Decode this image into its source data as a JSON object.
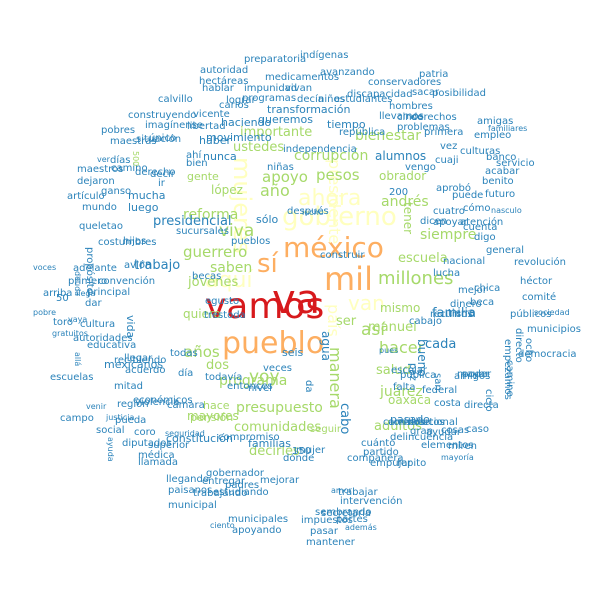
{
  "palette": {
    "red": "#d7191c",
    "orange": "#fdae61",
    "yellow": "#ffffbf",
    "green": "#a6d96a",
    "blue": "#2b83ba"
  },
  "words": [
    {
      "t": "va",
      "c": "red"
    },
    {
      "t": "vamos",
      "c": "red"
    },
    {
      "t": "mil",
      "c": "orange"
    },
    {
      "t": "méxico",
      "c": "orange"
    },
    {
      "t": "sí",
      "c": "orange"
    },
    {
      "t": "pueblo",
      "c": "orange"
    },
    {
      "t": "gobierno",
      "c": "yellow"
    },
    {
      "t": "aquí",
      "c": "yellow"
    },
    {
      "t": "mujeres",
      "c": "yellow"
    },
    {
      "t": "ahora",
      "c": "yellow"
    },
    {
      "t": "van",
      "c": "yellow"
    },
    {
      "t": "presidente",
      "c": "yellow"
    },
    {
      "t": "país",
      "c": "yellow"
    },
    {
      "t": "millones",
      "c": "green"
    },
    {
      "t": "pesos",
      "c": "green"
    },
    {
      "t": "apoyo",
      "c": "green"
    },
    {
      "t": "viva",
      "c": "green"
    },
    {
      "t": "voy",
      "c": "green"
    },
    {
      "t": "así",
      "c": "green"
    },
    {
      "t": "hacer",
      "c": "green"
    },
    {
      "t": "programa",
      "c": "green"
    },
    {
      "t": "presupuesto",
      "c": "green"
    },
    {
      "t": "comunidades",
      "c": "green"
    },
    {
      "t": "año",
      "c": "green"
    },
    {
      "t": "guerrero",
      "c": "green"
    },
    {
      "t": "reforma",
      "c": "green"
    },
    {
      "t": "corrupción",
      "c": "green"
    },
    {
      "t": "bienestar",
      "c": "green"
    },
    {
      "t": "tener",
      "c": "green"
    },
    {
      "t": "andrés",
      "c": "green"
    },
    {
      "t": "escuela",
      "c": "green"
    },
    {
      "t": "siempre",
      "c": "green"
    },
    {
      "t": "saben",
      "c": "green"
    },
    {
      "t": "jóvenes",
      "c": "green"
    },
    {
      "t": "años",
      "c": "green"
    },
    {
      "t": "juárez",
      "c": "green"
    },
    {
      "t": "salud",
      "c": "green"
    },
    {
      "t": "oaxaca",
      "c": "green"
    },
    {
      "t": "adultos",
      "c": "green"
    },
    {
      "t": "manuel",
      "c": "green"
    },
    {
      "t": "dos",
      "c": "green"
    },
    {
      "t": "mayores",
      "c": "green"
    },
    {
      "t": "decirles",
      "c": "green"
    },
    {
      "t": "quiero",
      "c": "green"
    },
    {
      "t": "manera",
      "c": "green"
    },
    {
      "t": "mismo",
      "c": "green"
    },
    {
      "t": "sólo",
      "c": "blue"
    },
    {
      "t": "ustedes",
      "c": "green"
    },
    {
      "t": "importante",
      "c": "green"
    },
    {
      "t": "gente",
      "c": "green"
    },
    {
      "t": "lópez",
      "c": "green"
    },
    {
      "t": "presidencial",
      "c": "blue"
    },
    {
      "t": "bueno",
      "c": "blue"
    },
    {
      "t": "trabajo",
      "c": "blue"
    },
    {
      "t": "familia",
      "c": "blue"
    },
    {
      "t": "nunca",
      "c": "blue"
    },
    {
      "t": "haber",
      "c": "blue"
    },
    {
      "t": "alumnos",
      "c": "blue"
    },
    {
      "t": "obrador",
      "c": "green"
    },
    {
      "t": "mexicanos",
      "c": "blue"
    },
    {
      "t": "ser",
      "c": "green"
    },
    {
      "t": "cada",
      "c": "blue"
    },
    {
      "t": "hace",
      "c": "green"
    },
    {
      "t": "pensión",
      "c": "green"
    },
    {
      "t": "constitución",
      "c": "blue"
    },
    {
      "t": "familias",
      "c": "blue"
    },
    {
      "t": "150",
      "c": "blue"
    },
    {
      "t": "mujer",
      "c": "blue"
    },
    {
      "t": "gobernador",
      "c": "blue"
    },
    {
      "t": "entregar",
      "c": "blue"
    },
    {
      "t": "padres",
      "c": "blue"
    },
    {
      "t": "trabajando",
      "c": "blue"
    },
    {
      "t": "estudiando",
      "c": "blue"
    },
    {
      "t": "trabajar",
      "c": "blue"
    },
    {
      "t": "pasado",
      "c": "blue"
    },
    {
      "t": "amigos",
      "c": "blue"
    },
    {
      "t": "federal",
      "c": "blue"
    },
    {
      "t": "mayor",
      "c": "blue"
    },
    {
      "t": "poder",
      "c": "blue"
    },
    {
      "t": "directa",
      "c": "blue"
    },
    {
      "t": "dinero",
      "c": "blue"
    },
    {
      "t": "lucha",
      "c": "blue"
    },
    {
      "t": "nacional",
      "c": "blue"
    },
    {
      "t": "mejor",
      "c": "blue"
    },
    {
      "t": "recursos",
      "c": "blue"
    },
    {
      "t": "puede",
      "c": "blue"
    },
    {
      "t": "dicen",
      "c": "blue"
    },
    {
      "t": "apoyar",
      "c": "blue"
    },
    {
      "t": "cuenta",
      "c": "blue"
    },
    {
      "t": "digo",
      "c": "blue"
    },
    {
      "t": "cómo",
      "c": "blue"
    },
    {
      "t": "revolución",
      "c": "blue"
    },
    {
      "t": "héctor",
      "c": "blue"
    },
    {
      "t": "comité",
      "c": "blue"
    },
    {
      "t": "públicos",
      "c": "blue"
    },
    {
      "t": "empezamos",
      "c": "blue"
    },
    {
      "t": "democracia",
      "c": "blue"
    },
    {
      "t": "movimiento",
      "c": "blue"
    },
    {
      "t": "haciendo",
      "c": "blue"
    },
    {
      "t": "queremos",
      "c": "blue"
    },
    {
      "t": "transformación",
      "c": "blue"
    },
    {
      "t": "tiempo",
      "c": "blue"
    },
    {
      "t": "programas",
      "c": "blue"
    },
    {
      "t": "estudiantes",
      "c": "blue"
    },
    {
      "t": "discapacidad",
      "c": "blue"
    },
    {
      "t": "sacar",
      "c": "blue"
    },
    {
      "t": "conservadores",
      "c": "blue"
    },
    {
      "t": "avanzando",
      "c": "blue"
    },
    {
      "t": "indígenas",
      "c": "blue"
    },
    {
      "t": "preparatoria",
      "c": "blue"
    },
    {
      "t": "autoridad",
      "c": "blue"
    },
    {
      "t": "hectáreas",
      "c": "blue"
    },
    {
      "t": "medicamentos",
      "c": "blue"
    },
    {
      "t": "impunidad",
      "c": "blue"
    },
    {
      "t": "vivan",
      "c": "blue"
    },
    {
      "t": "hablar",
      "c": "blue"
    },
    {
      "t": "lograr",
      "c": "blue"
    },
    {
      "t": "carlos",
      "c": "blue"
    },
    {
      "t": "calvillo",
      "c": "blue"
    },
    {
      "t": "construyendo",
      "c": "blue"
    },
    {
      "t": "vicente",
      "c": "blue"
    },
    {
      "t": "imagínense",
      "c": "blue"
    },
    {
      "t": "libertad",
      "c": "blue"
    },
    {
      "t": "pobres",
      "c": "blue"
    },
    {
      "t": "situación",
      "c": "blue"
    },
    {
      "t": "único",
      "c": "blue"
    },
    {
      "t": "días",
      "c": "blue"
    },
    {
      "t": "camino",
      "c": "blue"
    },
    {
      "t": "maestras",
      "c": "blue"
    },
    {
      "t": "maestros",
      "c": "blue"
    },
    {
      "t": "dejaron",
      "c": "blue"
    },
    {
      "t": "artículo",
      "c": "blue"
    },
    {
      "t": "mundo",
      "c": "blue"
    },
    {
      "t": "deuda",
      "c": "blue"
    },
    {
      "t": "propósito",
      "c": "blue"
    },
    {
      "t": "costumbres",
      "c": "blue"
    },
    {
      "t": "adelante",
      "c": "blue"
    },
    {
      "t": "voces",
      "c": "blue"
    },
    {
      "t": "primero",
      "c": "blue"
    },
    {
      "t": "convención",
      "c": "blue"
    },
    {
      "t": "arriba",
      "c": "blue"
    },
    {
      "t": "llega",
      "c": "blue"
    },
    {
      "t": "principal",
      "c": "blue"
    },
    {
      "t": "pobre",
      "c": "blue"
    },
    {
      "t": "toro",
      "c": "blue"
    },
    {
      "t": "gratuitos",
      "c": "blue"
    },
    {
      "t": "cultura",
      "c": "blue"
    },
    {
      "t": "educativa",
      "c": "blue"
    },
    {
      "t": "recibiendo",
      "c": "blue"
    },
    {
      "t": "acuerdo",
      "c": "blue"
    },
    {
      "t": "llegar",
      "c": "blue"
    },
    {
      "t": "escuelas",
      "c": "blue"
    },
    {
      "t": "mitad",
      "c": "blue"
    },
    {
      "t": "región",
      "c": "blue"
    },
    {
      "t": "económicos",
      "c": "blue"
    },
    {
      "t": "cámara",
      "c": "blue"
    },
    {
      "t": "campo",
      "c": "blue"
    },
    {
      "t": "pueda",
      "c": "blue"
    },
    {
      "t": "social",
      "c": "blue"
    },
    {
      "t": "coro",
      "c": "blue"
    },
    {
      "t": "seguridad",
      "c": "blue"
    },
    {
      "t": "diputados",
      "c": "blue"
    },
    {
      "t": "superior",
      "c": "blue"
    },
    {
      "t": "médica",
      "c": "blue"
    },
    {
      "t": "llamada",
      "c": "blue"
    },
    {
      "t": "llegando",
      "c": "blue"
    },
    {
      "t": "paisanos",
      "c": "blue"
    },
    {
      "t": "municipal",
      "c": "blue"
    },
    {
      "t": "mejorar",
      "c": "blue"
    },
    {
      "t": "ciento",
      "c": "blue"
    },
    {
      "t": "municipales",
      "c": "blue"
    },
    {
      "t": "apoyando",
      "c": "blue"
    },
    {
      "t": "impuestos",
      "c": "blue"
    },
    {
      "t": "pasar",
      "c": "blue"
    },
    {
      "t": "mantener",
      "c": "blue"
    },
    {
      "t": "partes",
      "c": "blue"
    },
    {
      "t": "además",
      "c": "blue"
    },
    {
      "t": "secretaria",
      "c": "blue"
    },
    {
      "t": "sembrando",
      "c": "blue"
    },
    {
      "t": "intervención",
      "c": "blue"
    },
    {
      "t": "empujar",
      "c": "blue"
    },
    {
      "t": "repito",
      "c": "blue"
    },
    {
      "t": "compañera",
      "c": "blue"
    },
    {
      "t": "dónde",
      "c": "blue"
    },
    {
      "t": "cuánto",
      "c": "blue"
    },
    {
      "t": "delincuencia",
      "c": "blue"
    },
    {
      "t": "pública",
      "c": "blue"
    },
    {
      "t": "tierra",
      "c": "blue"
    },
    {
      "t": "beca",
      "c": "blue"
    },
    {
      "t": "partido",
      "c": "blue"
    },
    {
      "t": "constitucional",
      "c": "blue"
    },
    {
      "t": "boletos",
      "c": "blue"
    },
    {
      "t": "gran",
      "c": "blue"
    },
    {
      "t": "ayudar",
      "c": "blue"
    },
    {
      "t": "costa",
      "c": "blue"
    },
    {
      "t": "caso",
      "c": "blue"
    },
    {
      "t": "cosas",
      "c": "blue"
    },
    {
      "t": "miren",
      "c": "blue"
    },
    {
      "t": "elementos",
      "c": "blue"
    },
    {
      "t": "mayoría",
      "c": "blue"
    },
    {
      "t": "municipios",
      "c": "blue"
    },
    {
      "t": "ocho",
      "c": "blue"
    },
    {
      "t": "directo",
      "c": "blue"
    },
    {
      "t": "camine",
      "c": "blue"
    },
    {
      "t": "sociedad",
      "c": "blue"
    },
    {
      "t": "chica",
      "c": "blue"
    },
    {
      "t": "general",
      "c": "blue"
    },
    {
      "t": "atención",
      "c": "blue"
    },
    {
      "t": "nasculo",
      "c": "blue"
    },
    {
      "t": "cuatro",
      "c": "blue"
    },
    {
      "t": "aprobó",
      "c": "blue"
    },
    {
      "t": "benito",
      "c": "blue"
    },
    {
      "t": "futuro",
      "c": "blue"
    },
    {
      "t": "acabar",
      "c": "blue"
    },
    {
      "t": "banco",
      "c": "blue"
    },
    {
      "t": "empleo",
      "c": "blue"
    },
    {
      "t": "servicio",
      "c": "blue"
    },
    {
      "t": "vez",
      "c": "blue"
    },
    {
      "t": "culturas",
      "c": "blue"
    },
    {
      "t": "amigas",
      "c": "blue"
    },
    {
      "t": "familiares",
      "c": "blue"
    },
    {
      "t": "primera",
      "c": "blue"
    },
    {
      "t": "problemas",
      "c": "blue"
    },
    {
      "t": "derechos",
      "c": "blue"
    },
    {
      "t": "patria",
      "c": "blue"
    },
    {
      "t": "posibilidad",
      "c": "blue"
    },
    {
      "t": "hombres",
      "c": "blue"
    },
    {
      "t": "cinco",
      "c": "blue"
    },
    {
      "t": "llevamos",
      "c": "blue"
    },
    {
      "t": "república",
      "c": "blue"
    },
    {
      "t": "independencia",
      "c": "blue"
    },
    {
      "t": "decía",
      "c": "blue"
    },
    {
      "t": "niños",
      "c": "blue"
    },
    {
      "t": "construir",
      "c": "blue"
    },
    {
      "t": "niñas",
      "c": "blue"
    },
    {
      "t": "vengo",
      "c": "blue"
    },
    {
      "t": "cuaji",
      "c": "blue"
    },
    {
      "t": "200",
      "c": "blue"
    },
    {
      "t": "mucha",
      "c": "blue"
    },
    {
      "t": "luego",
      "c": "blue"
    },
    {
      "t": "sucursales",
      "c": "blue"
    },
    {
      "t": "hijos",
      "c": "blue"
    },
    {
      "t": "avión",
      "c": "blue"
    },
    {
      "t": "becas",
      "c": "blue"
    },
    {
      "t": "egusto",
      "c": "blue"
    },
    {
      "t": "trestoda",
      "c": "blue"
    },
    {
      "t": "pueblos",
      "c": "blue"
    },
    {
      "t": "todavía",
      "c": "blue"
    },
    {
      "t": "violencia",
      "c": "blue"
    },
    {
      "t": "entonces",
      "c": "blue"
    },
    {
      "t": "nivel",
      "c": "blue"
    },
    {
      "t": "veces",
      "c": "blue"
    },
    {
      "t": "bien",
      "c": "blue"
    },
    {
      "t": "ahí",
      "c": "blue"
    },
    {
      "t": "decir",
      "c": "blue"
    },
    {
      "t": "ir",
      "c": "blue"
    },
    {
      "t": "ver",
      "c": "blue"
    },
    {
      "t": "vida",
      "c": "blue"
    },
    {
      "t": "agua",
      "c": "blue"
    },
    {
      "t": "seis",
      "c": "blue"
    },
    {
      "t": "día",
      "c": "blue"
    },
    {
      "t": "todas",
      "c": "blue"
    },
    {
      "t": "compromiso",
      "c": "blue"
    },
    {
      "t": "seguir",
      "c": "green"
    },
    {
      "t": "da",
      "c": "blue"
    },
    {
      "t": "cabo",
      "c": "blue"
    },
    {
      "t": "paz",
      "c": "blue"
    },
    {
      "t": "san",
      "c": "blue"
    },
    {
      "t": "escolar",
      "c": "blue"
    },
    {
      "t": "falta",
      "c": "blue"
    },
    {
      "t": "500",
      "c": "green"
    },
    {
      "t": "derecho",
      "c": "blue"
    },
    {
      "t": "queletao",
      "c": "blue"
    },
    {
      "t": "50",
      "c": "blue"
    },
    {
      "t": "dar",
      "c": "blue"
    },
    {
      "t": "allá",
      "c": "blue"
    },
    {
      "t": "autoridades",
      "c": "blue"
    },
    {
      "t": "vaya",
      "c": "blue"
    },
    {
      "t": "venir",
      "c": "blue"
    },
    {
      "t": "ayuda",
      "c": "blue"
    },
    {
      "t": "justicia",
      "c": "blue"
    },
    {
      "t": "ciclo",
      "c": "blue"
    },
    {
      "t": "cabajo",
      "c": "blue"
    },
    {
      "t": "caminos",
      "c": "blue"
    },
    {
      "t": "ganso",
      "c": "blue"
    },
    {
      "t": "después",
      "c": "blue"
    },
    {
      "t": "lucho",
      "c": "blue"
    },
    {
      "t": "pues",
      "c": "blue"
    },
    {
      "t": "amor",
      "c": "blue"
    },
    {
      "t": "caso",
      "c": "blue"
    },
    {
      "t": "700",
      "c": "blue"
    },
    {
      "t": "20",
      "c": "blue"
    },
    {
      "t": "%",
      "c": "blue"
    },
    {
      "t": "hacer",
      "c": "blue"
    },
    {
      "t": "mucha",
      "c": "blue"
    }
  ]
}
